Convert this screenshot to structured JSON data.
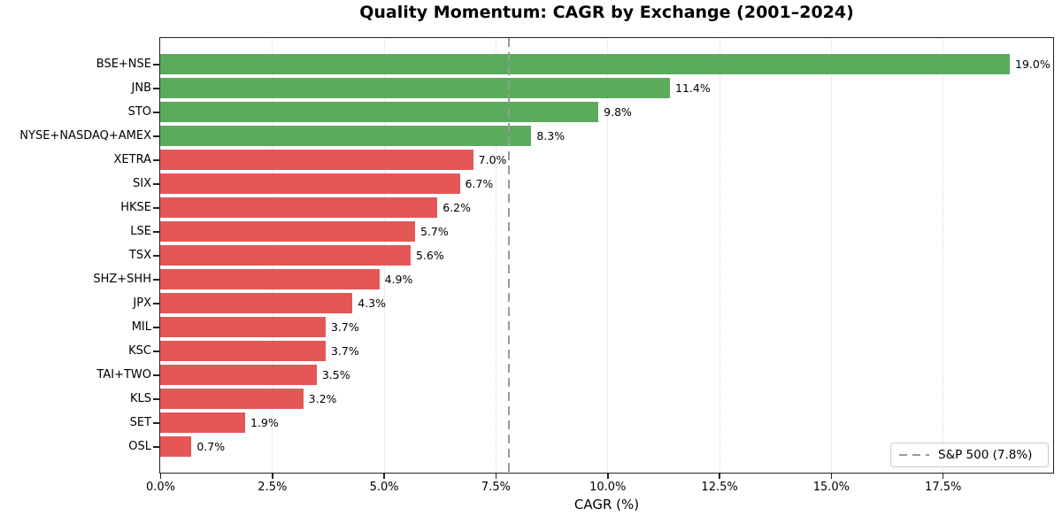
{
  "chart_data": {
    "type": "bar",
    "orientation": "horizontal",
    "title": "Quality Momentum: CAGR by Exchange (2001–2024)",
    "xlabel": "CAGR (%)",
    "categories": [
      "BSE+NSE",
      "JNB",
      "STO",
      "NYSE+NASDAQ+AMEX",
      "XETRA",
      "SIX",
      "HKSE",
      "LSE",
      "TSX",
      "SHZ+SHH",
      "JPX",
      "MIL",
      "KSC",
      "TAI+TWO",
      "KLS",
      "SET",
      "OSL"
    ],
    "values": [
      19.0,
      11.4,
      9.8,
      8.3,
      7.0,
      6.7,
      6.2,
      5.7,
      5.6,
      4.9,
      4.3,
      3.7,
      3.7,
      3.5,
      3.2,
      1.9,
      0.7
    ],
    "bar_labels": [
      "19.0%",
      "11.4%",
      "9.8%",
      "8.3%",
      "7.0%",
      "6.7%",
      "6.2%",
      "5.7%",
      "5.6%",
      "4.9%",
      "4.3%",
      "3.7%",
      "3.7%",
      "3.5%",
      "3.2%",
      "1.9%",
      "0.7%"
    ],
    "xlim": [
      0,
      19.95
    ],
    "xticks": {
      "values": [
        0,
        2.5,
        5,
        7.5,
        10,
        12.5,
        15,
        17.5
      ],
      "labels": [
        "0.0%",
        "2.5%",
        "5.0%",
        "7.5%",
        "10.0%",
        "12.5%",
        "15.0%",
        "17.5%"
      ]
    },
    "grid": {
      "axis": "x",
      "style": "dotted",
      "color": "#d9d9d9"
    },
    "benchmark": {
      "label": "S&P 500 (7.8%)",
      "value": 7.8,
      "color": "#9a9a9a",
      "style": "dashed"
    },
    "colors": {
      "above_benchmark": "#5aab5c",
      "below_benchmark": "#e45756"
    },
    "legend": {
      "position": "lower right",
      "entries": [
        {
          "label": "S&P 500 (7.8%)",
          "color": "#9a9a9a",
          "style": "dashed"
        }
      ]
    }
  }
}
